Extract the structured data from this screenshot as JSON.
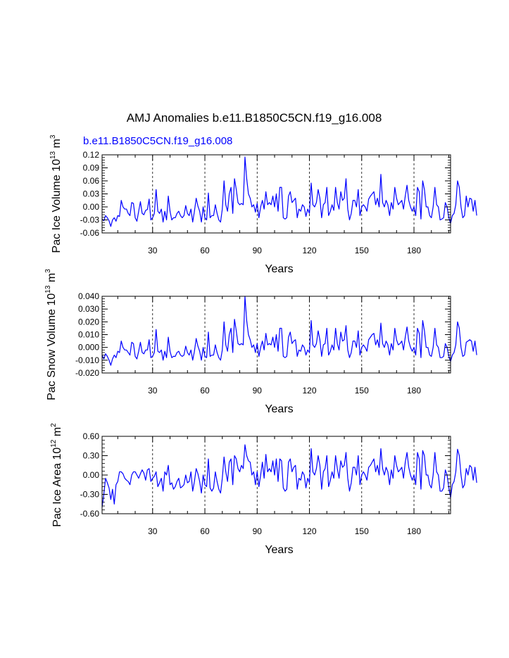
{
  "figure_title": "AMJ Anomalies b.e11.B1850C5CN.f19_g16.008",
  "subtitle": "b.e11.B1850C5CN.f19_g16.008",
  "colors": {
    "line": "#0000ff",
    "subtitle": "#0000ff",
    "axes": "#000000",
    "grid": "#000000"
  },
  "chart_data": [
    {
      "type": "line",
      "ylabel_main": "Pac Ice Volume 10",
      "ylabel_exp": "13",
      "ylabel_unit": " m",
      "ylabel_unit_exp": "3",
      "xlabel": "Years",
      "xlim": [
        1,
        201
      ],
      "ylim": [
        -0.06,
        0.12
      ],
      "yticks": [
        -0.06,
        -0.03,
        0.0,
        0.03,
        0.06,
        0.09,
        0.12
      ],
      "ytick_labels": [
        "-0.06",
        "-0.03",
        "0.00",
        "0.03",
        "0.06",
        "0.09",
        "0.12"
      ],
      "xticks": [
        30,
        60,
        90,
        120,
        150,
        180
      ],
      "xtick_labels": [
        "30",
        "60",
        "90",
        "120",
        "150",
        "180"
      ],
      "grid_x": true,
      "series": [
        {
          "name": "b.e11.B1850C5CN.f19_g16.008",
          "x_start": 1,
          "values": [
            -0.028,
            -0.032,
            -0.02,
            -0.025,
            -0.032,
            -0.045,
            -0.03,
            -0.025,
            -0.033,
            -0.02,
            -0.022,
            0.015,
            0.0,
            -0.005,
            -0.005,
            -0.015,
            -0.02,
            0.01,
            0.008,
            -0.025,
            -0.033,
            -0.01,
            0.012,
            -0.015,
            -0.018,
            -0.008,
            -0.006,
            0.018,
            -0.03,
            -0.025,
            -0.015,
            0.04,
            -0.01,
            -0.015,
            -0.005,
            -0.035,
            -0.01,
            -0.03,
            0.025,
            -0.01,
            -0.03,
            -0.025,
            -0.025,
            -0.015,
            -0.01,
            -0.02,
            -0.025,
            -0.02,
            0.003,
            -0.015,
            -0.02,
            -0.005,
            -0.035,
            -0.01,
            0.02,
            0.002,
            -0.01,
            -0.035,
            0.0,
            -0.025,
            -0.03,
            0.032,
            -0.025,
            -0.02,
            -0.02,
            0.005,
            -0.015,
            -0.03,
            -0.035,
            -0.005,
            0.06,
            0.005,
            -0.01,
            0.03,
            0.045,
            -0.015,
            0.065,
            0.04,
            0.01,
            0.005,
            0.008,
            0.005,
            0.115,
            0.065,
            0.03,
            0.02,
            0.0,
            0.005,
            -0.012,
            0.008,
            -0.025,
            0.0,
            0.015,
            -0.005,
            0.035,
            0.005,
            0.01,
            0.005,
            0.025,
            0.0,
            0.03,
            -0.01,
            0.045,
            0.045,
            -0.025,
            -0.028,
            -0.025,
            0.025,
            0.035,
            0.01,
            0.015,
            0.02,
            -0.025,
            -0.005,
            -0.01,
            0.005,
            0.0,
            -0.022,
            -0.005,
            -0.015,
            0.055,
            0.005,
            0.0,
            0.01,
            0.04,
            0.02,
            -0.025,
            0.005,
            0.01,
            0.045,
            -0.02,
            -0.01,
            0.005,
            -0.008,
            0.045,
            0.01,
            -0.005,
            0.035,
            0.015,
            0.02,
            0.065,
            -0.005,
            -0.03,
            -0.015,
            0.015,
            0.015,
            0.0,
            0.04,
            -0.02,
            0.0,
            0.005,
            0.0,
            -0.01,
            0.018,
            0.025,
            0.03,
            0.035,
            0.005,
            0.02,
            0.0,
            0.075,
            0.01,
            0.0,
            0.015,
            0.005,
            -0.02,
            0.01,
            -0.005,
            0.045,
            0.02,
            0.005,
            0.01,
            0.015,
            -0.005,
            0.025,
            0.05,
            0.015,
            0.0,
            -0.01,
            0.0,
            -0.02,
            0.045,
            0.035,
            -0.028,
            0.06,
            0.04,
            0.0,
            0.0,
            -0.02,
            -0.025,
            0.0,
            0.045,
            0.005,
            0.0,
            -0.03,
            -0.028,
            -0.025,
            0.01,
            0.0,
            -0.025,
            -0.038,
            -0.02,
            -0.015,
            0.005,
            0.06,
            0.045,
            0.0,
            -0.025,
            -0.02,
            0.025,
            0.0,
            0.02,
            0.018,
            -0.01,
            0.015,
            -0.02
          ]
        }
      ]
    },
    {
      "type": "line",
      "ylabel_main": "Pac Snow Volume 10",
      "ylabel_exp": "13",
      "ylabel_unit": " m",
      "ylabel_unit_exp": "3",
      "xlabel": "Years",
      "xlim": [
        1,
        201
      ],
      "ylim": [
        -0.02,
        0.04
      ],
      "yticks": [
        -0.02,
        -0.01,
        0.0,
        0.01,
        0.02,
        0.03,
        0.04
      ],
      "ytick_labels": [
        "-0.020",
        "-0.010",
        "0.000",
        "0.010",
        "0.020",
        "0.030",
        "0.040"
      ],
      "xticks": [
        30,
        60,
        90,
        120,
        150,
        180
      ],
      "xtick_labels": [
        "30",
        "60",
        "90",
        "120",
        "150",
        "180"
      ],
      "grid_x": true,
      "series": [
        {
          "name": "b.e11.B1850C5CN.f19_g16.008",
          "x_start": 1,
          "values": [
            -0.006,
            -0.009,
            -0.005,
            -0.007,
            -0.01,
            -0.014,
            -0.009,
            -0.006,
            -0.008,
            -0.003,
            -0.004,
            0.005,
            0.0,
            -0.002,
            -0.002,
            -0.004,
            -0.006,
            0.004,
            0.003,
            -0.007,
            -0.009,
            -0.003,
            0.004,
            -0.004,
            -0.005,
            -0.002,
            -0.002,
            0.006,
            -0.008,
            -0.007,
            -0.004,
            0.014,
            -0.003,
            -0.004,
            -0.002,
            -0.01,
            -0.003,
            -0.008,
            0.008,
            -0.003,
            -0.008,
            -0.007,
            -0.007,
            -0.004,
            -0.003,
            -0.006,
            -0.007,
            -0.006,
            0.001,
            -0.004,
            -0.006,
            -0.002,
            -0.01,
            -0.003,
            0.007,
            0.001,
            -0.003,
            -0.01,
            0.0,
            -0.007,
            -0.008,
            0.012,
            -0.007,
            -0.006,
            -0.006,
            0.002,
            -0.004,
            -0.008,
            -0.01,
            -0.002,
            0.02,
            0.002,
            -0.003,
            0.01,
            0.015,
            -0.004,
            0.022,
            0.013,
            0.003,
            0.002,
            0.003,
            0.002,
            0.04,
            0.021,
            0.01,
            0.006,
            0.0,
            0.002,
            -0.004,
            0.003,
            -0.007,
            0.0,
            0.005,
            -0.002,
            0.011,
            0.002,
            0.003,
            0.002,
            0.008,
            0.0,
            0.01,
            -0.003,
            0.015,
            0.015,
            -0.007,
            -0.008,
            -0.007,
            0.008,
            0.012,
            0.003,
            0.005,
            0.006,
            -0.007,
            -0.002,
            -0.003,
            0.002,
            0.0,
            -0.006,
            -0.002,
            -0.004,
            0.021,
            0.002,
            0.0,
            0.003,
            0.013,
            0.006,
            -0.007,
            0.002,
            0.003,
            0.015,
            -0.006,
            -0.003,
            0.002,
            -0.002,
            0.015,
            0.003,
            -0.002,
            0.012,
            0.005,
            0.006,
            0.017,
            -0.002,
            -0.008,
            -0.004,
            0.005,
            0.005,
            0.0,
            0.013,
            -0.006,
            0.0,
            0.002,
            0.0,
            -0.003,
            0.006,
            0.008,
            0.01,
            0.011,
            0.002,
            0.006,
            0.0,
            0.019,
            0.003,
            0.0,
            0.005,
            0.002,
            -0.006,
            0.003,
            -0.002,
            0.015,
            0.006,
            0.002,
            0.003,
            0.005,
            -0.002,
            0.008,
            0.016,
            0.005,
            0.0,
            -0.003,
            0.0,
            -0.006,
            0.015,
            0.011,
            -0.008,
            0.021,
            0.013,
            0.0,
            0.0,
            -0.006,
            -0.007,
            0.0,
            0.015,
            0.002,
            0.0,
            -0.008,
            -0.008,
            -0.007,
            0.003,
            0.0,
            -0.007,
            -0.011,
            -0.006,
            -0.004,
            0.002,
            0.02,
            0.015,
            0.0,
            -0.007,
            -0.006,
            0.004,
            0.005,
            0.006,
            0.005,
            -0.003,
            0.005,
            -0.006
          ]
        }
      ]
    },
    {
      "type": "line",
      "ylabel_main": "Pac Ice Area 10",
      "ylabel_exp": "12",
      "ylabel_unit": " m",
      "ylabel_unit_exp": "2",
      "xlabel": "Years",
      "xlim": [
        1,
        201
      ],
      "ylim": [
        -0.6,
        0.6
      ],
      "yticks": [
        -0.6,
        -0.3,
        0.0,
        0.3,
        0.6
      ],
      "ytick_labels": [
        "-0.60",
        "-0.30",
        "0.00",
        "0.30",
        "0.60"
      ],
      "xticks": [
        30,
        60,
        90,
        120,
        150,
        180
      ],
      "xtick_labels": [
        "30",
        "60",
        "90",
        "120",
        "150",
        "180"
      ],
      "grid_x": true,
      "series": [
        {
          "name": "b.e11.B1850C5CN.f19_g16.008",
          "x_start": 1,
          "values": [
            -0.5,
            -0.3,
            -0.05,
            -0.12,
            -0.2,
            -0.38,
            -0.22,
            -0.45,
            -0.15,
            -0.1,
            0.05,
            0.05,
            0.02,
            -0.05,
            -0.08,
            -0.1,
            -0.15,
            0.0,
            0.05,
            0.05,
            0.0,
            -0.05,
            0.02,
            0.08,
            0.03,
            -0.08,
            0.08,
            0.1,
            -0.1,
            -0.05,
            -0.02,
            0.05,
            -0.18,
            -0.12,
            -0.05,
            -0.25,
            0.05,
            0.0,
            0.15,
            -0.15,
            -0.12,
            -0.22,
            -0.18,
            -0.1,
            -0.05,
            -0.2,
            -0.18,
            -0.15,
            0.0,
            -0.12,
            -0.1,
            0.05,
            -0.25,
            -0.1,
            0.1,
            0.02,
            -0.1,
            -0.28,
            0.0,
            -0.15,
            -0.18,
            0.25,
            -0.2,
            -0.25,
            -0.2,
            0.05,
            -0.1,
            -0.22,
            -0.28,
            -0.05,
            0.28,
            0.05,
            -0.1,
            0.2,
            0.25,
            -0.15,
            0.3,
            0.25,
            0.1,
            0.05,
            0.15,
            0.1,
            0.47,
            0.3,
            0.22,
            0.2,
            0.0,
            0.05,
            -0.15,
            0.05,
            -0.18,
            0.0,
            0.2,
            -0.05,
            0.32,
            0.05,
            0.1,
            0.05,
            0.22,
            0.0,
            0.25,
            -0.1,
            0.25,
            0.22,
            -0.2,
            -0.25,
            -0.22,
            0.2,
            0.25,
            0.05,
            0.12,
            0.15,
            -0.22,
            -0.05,
            -0.08,
            0.05,
            0.0,
            -0.2,
            -0.05,
            -0.12,
            0.41,
            0.05,
            0.0,
            0.1,
            0.3,
            0.15,
            -0.22,
            0.05,
            0.1,
            0.3,
            -0.18,
            -0.08,
            0.05,
            -0.05,
            0.3,
            0.1,
            -0.05,
            0.22,
            0.12,
            0.15,
            0.35,
            -0.05,
            -0.25,
            -0.12,
            0.12,
            0.12,
            0.0,
            0.3,
            -0.15,
            0.0,
            0.05,
            0.0,
            -0.08,
            0.12,
            0.15,
            0.2,
            0.25,
            0.05,
            0.15,
            0.0,
            0.41,
            0.1,
            0.0,
            0.12,
            0.05,
            -0.15,
            0.08,
            -0.05,
            0.3,
            0.15,
            0.05,
            0.08,
            0.12,
            -0.05,
            0.2,
            0.35,
            0.12,
            0.0,
            -0.08,
            0.0,
            -0.15,
            0.35,
            0.25,
            -0.22,
            0.38,
            0.3,
            0.0,
            0.0,
            -0.15,
            -0.2,
            0.0,
            0.35,
            0.05,
            0.0,
            -0.25,
            -0.25,
            -0.2,
            0.08,
            0.0,
            -0.2,
            -0.35,
            -0.15,
            -0.1,
            0.05,
            0.4,
            0.3,
            0.0,
            -0.2,
            -0.15,
            0.1,
            0.0,
            0.15,
            0.12,
            -0.08,
            0.12,
            -0.12
          ]
        }
      ]
    }
  ]
}
